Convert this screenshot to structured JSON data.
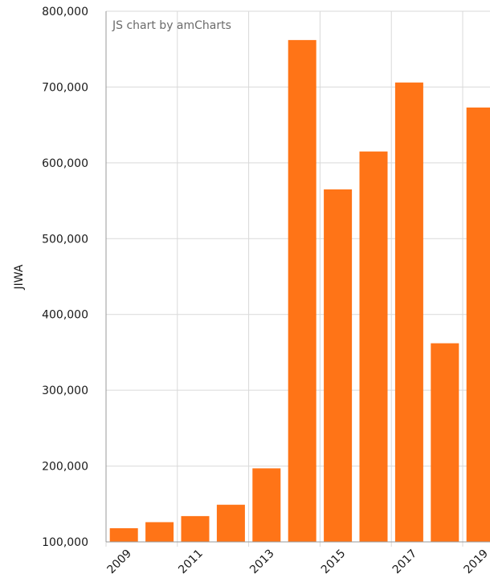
{
  "chart_data": {
    "type": "bar",
    "title": "",
    "xlabel": "",
    "ylabel": "JIWA",
    "credit": "JS chart by amCharts",
    "ylim": [
      100000,
      800000
    ],
    "yticks": [
      100000,
      200000,
      300000,
      400000,
      500000,
      600000,
      700000,
      800000
    ],
    "ytick_labels": [
      "100,000",
      "200,000",
      "300,000",
      "400,000",
      "500,000",
      "600,000",
      "700,000",
      "800,000"
    ],
    "categories": [
      "2009",
      "2010",
      "2011",
      "2012",
      "2013",
      "2014",
      "2015",
      "2016",
      "2017",
      "2018",
      "2019"
    ],
    "x_tick_labels_shown": [
      "2009",
      "2011",
      "2013",
      "2015",
      "2017",
      "2019"
    ],
    "values": [
      118000,
      126000,
      134000,
      149000,
      197000,
      762000,
      565000,
      615000,
      706000,
      362000,
      673000
    ],
    "bar_color": "#ff7417",
    "grid": true
  }
}
